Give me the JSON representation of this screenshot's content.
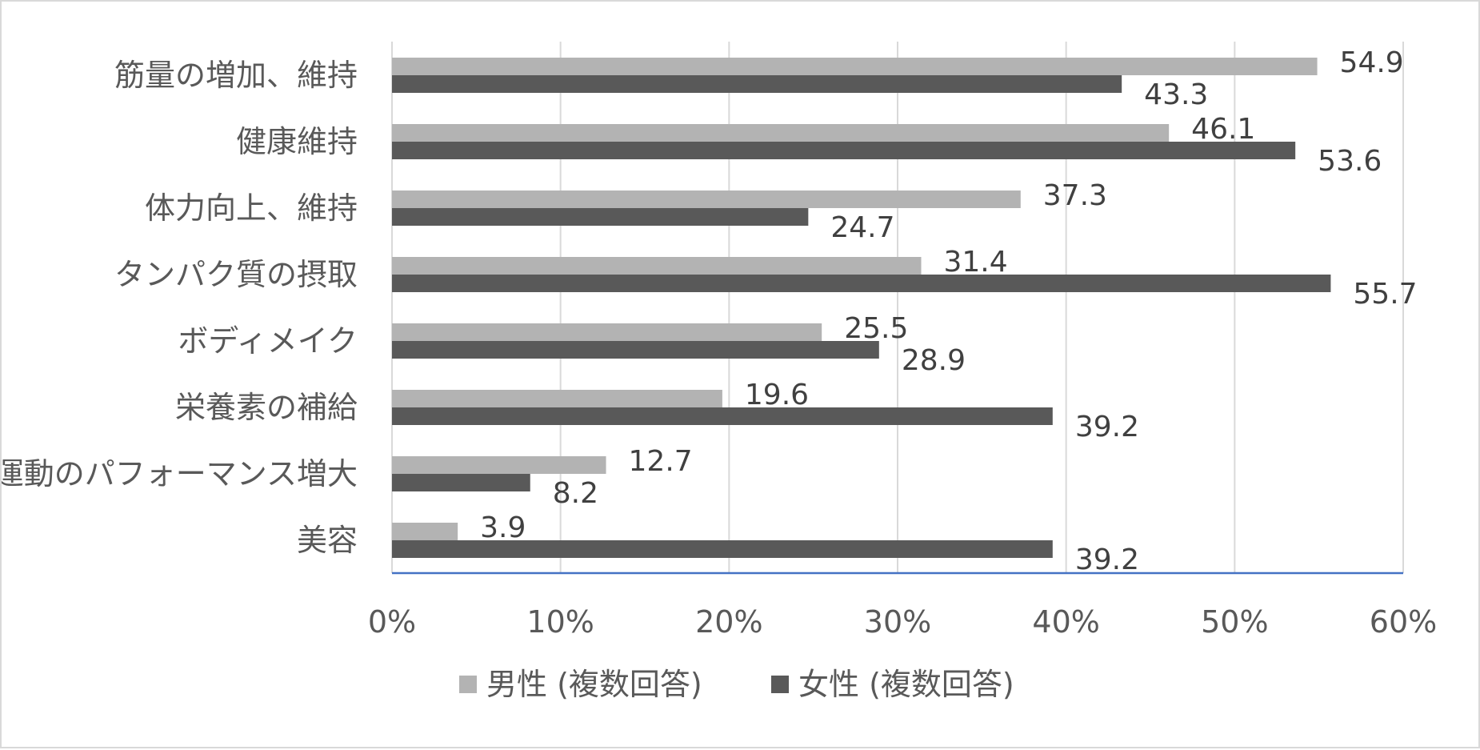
{
  "chart_data": {
    "type": "bar",
    "orientation": "horizontal",
    "categories": [
      "筋量の増加、維持",
      "健康維持",
      "体力向上、維持",
      "タンパク質の摂取",
      "ボディメイク",
      "栄養素の補給",
      "運動のパフォーマンス増大",
      "美容"
    ],
    "series": [
      {
        "name": "男性 (複数回答)",
        "color": "#b3b3b3",
        "values": [
          54.9,
          46.1,
          37.3,
          31.4,
          25.5,
          19.6,
          12.7,
          3.9
        ],
        "labels": [
          "54.9",
          "46.1",
          "37.3",
          "31.4",
          "25.5",
          "19.6",
          "12.7",
          "3.9"
        ]
      },
      {
        "name": "女性 (複数回答)",
        "color": "#595959",
        "values": [
          43.3,
          53.6,
          24.7,
          55.7,
          28.9,
          39.2,
          8.2,
          39.2
        ],
        "labels": [
          "43.3",
          "53.6",
          "24.7",
          "55.7",
          "28.9",
          "39.2",
          "8.2",
          "39.2"
        ]
      }
    ],
    "xlim": [
      0,
      60
    ],
    "xticks": [
      0,
      10,
      20,
      30,
      40,
      50,
      60
    ],
    "xtick_labels": [
      "0%",
      "10%",
      "20%",
      "30%",
      "40%",
      "50%",
      "60%"
    ],
    "grid": "vertical",
    "gridline_color": "#d9d9d9",
    "axis_color": "#4472c4",
    "legend_position": "bottom",
    "title": "",
    "xlabel": "",
    "ylabel": ""
  }
}
